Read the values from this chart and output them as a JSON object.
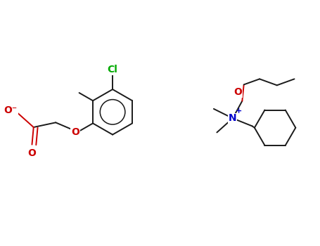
{
  "background_color": "#ffffff",
  "bond_color": "#1a1a1a",
  "cl_color": "#00aa00",
  "o_color": "#cc0000",
  "n_color": "#0000cc",
  "figsize": [
    4.55,
    3.5
  ],
  "dpi": 100,
  "xlim": [
    0,
    10
  ],
  "ylim": [
    0,
    7.7
  ]
}
